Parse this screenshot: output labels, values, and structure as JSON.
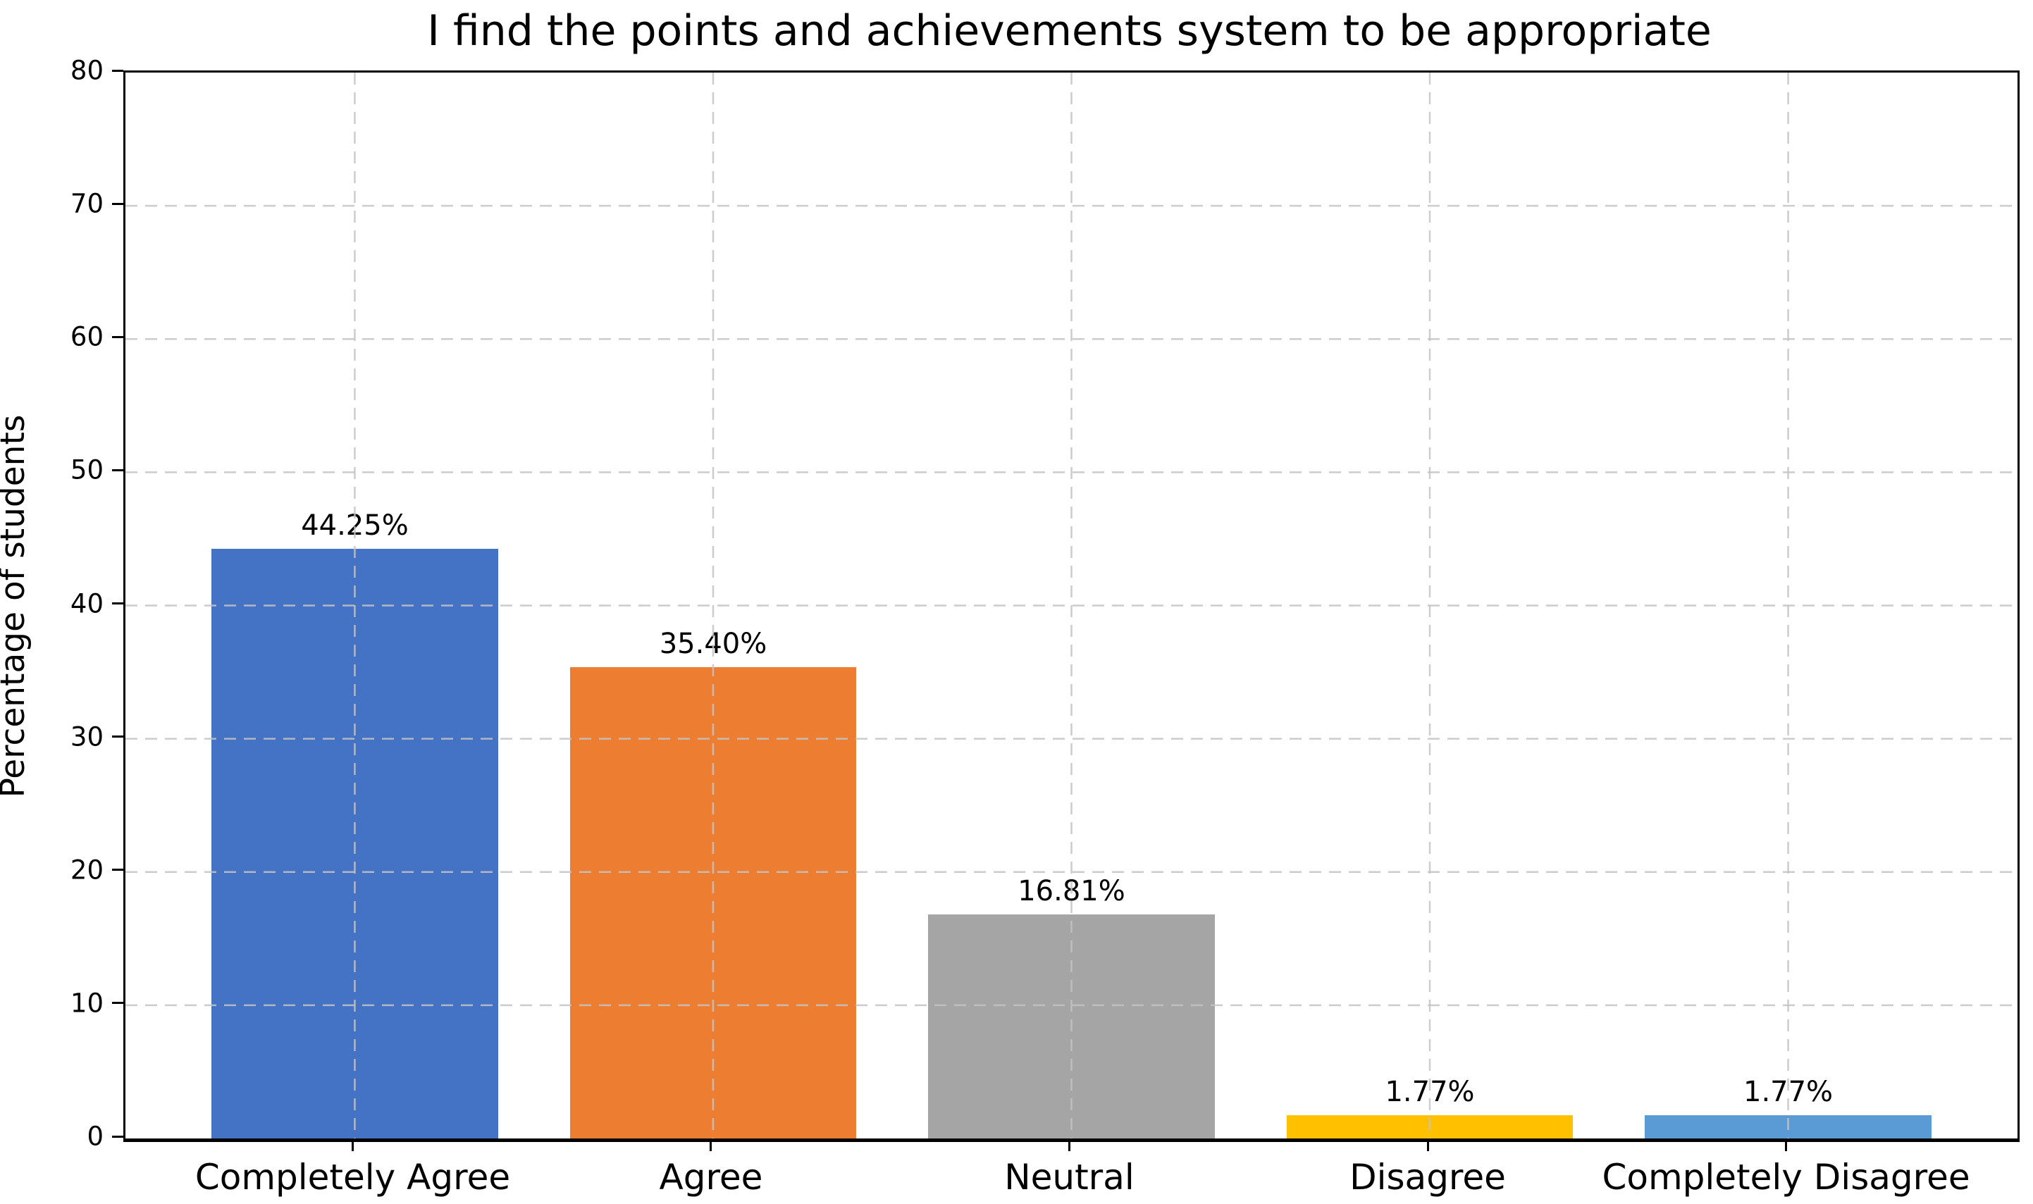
{
  "chart_data": {
    "type": "bar",
    "title": "I find the points and achievements system to be appropriate",
    "xlabel": "",
    "ylabel": "Percentage of students",
    "categories": [
      "Completely Agree",
      "Agree",
      "Neutral",
      "Disagree",
      "Completely Disagree"
    ],
    "values": [
      44.25,
      35.4,
      16.81,
      1.77,
      1.77
    ],
    "value_labels": [
      "44.25%",
      "35.40%",
      "16.81%",
      "1.77%",
      "1.77%"
    ],
    "bar_colors": [
      "#4472C4",
      "#ED7D31",
      "#A5A5A5",
      "#FFC000",
      "#5B9BD5"
    ],
    "ylim": [
      0,
      80
    ],
    "yticks": [
      0,
      10,
      20,
      30,
      40,
      50,
      60,
      70,
      80
    ],
    "bar_width_fraction": 0.8,
    "grid": "dashed light-gray gridlines, horizontal at each y-tick and vertical at each category center, drawn on top of bars",
    "grid_color": "#c4c4c4",
    "legend": "none",
    "background_color": "#ffffff",
    "text_color": "#000000"
  }
}
